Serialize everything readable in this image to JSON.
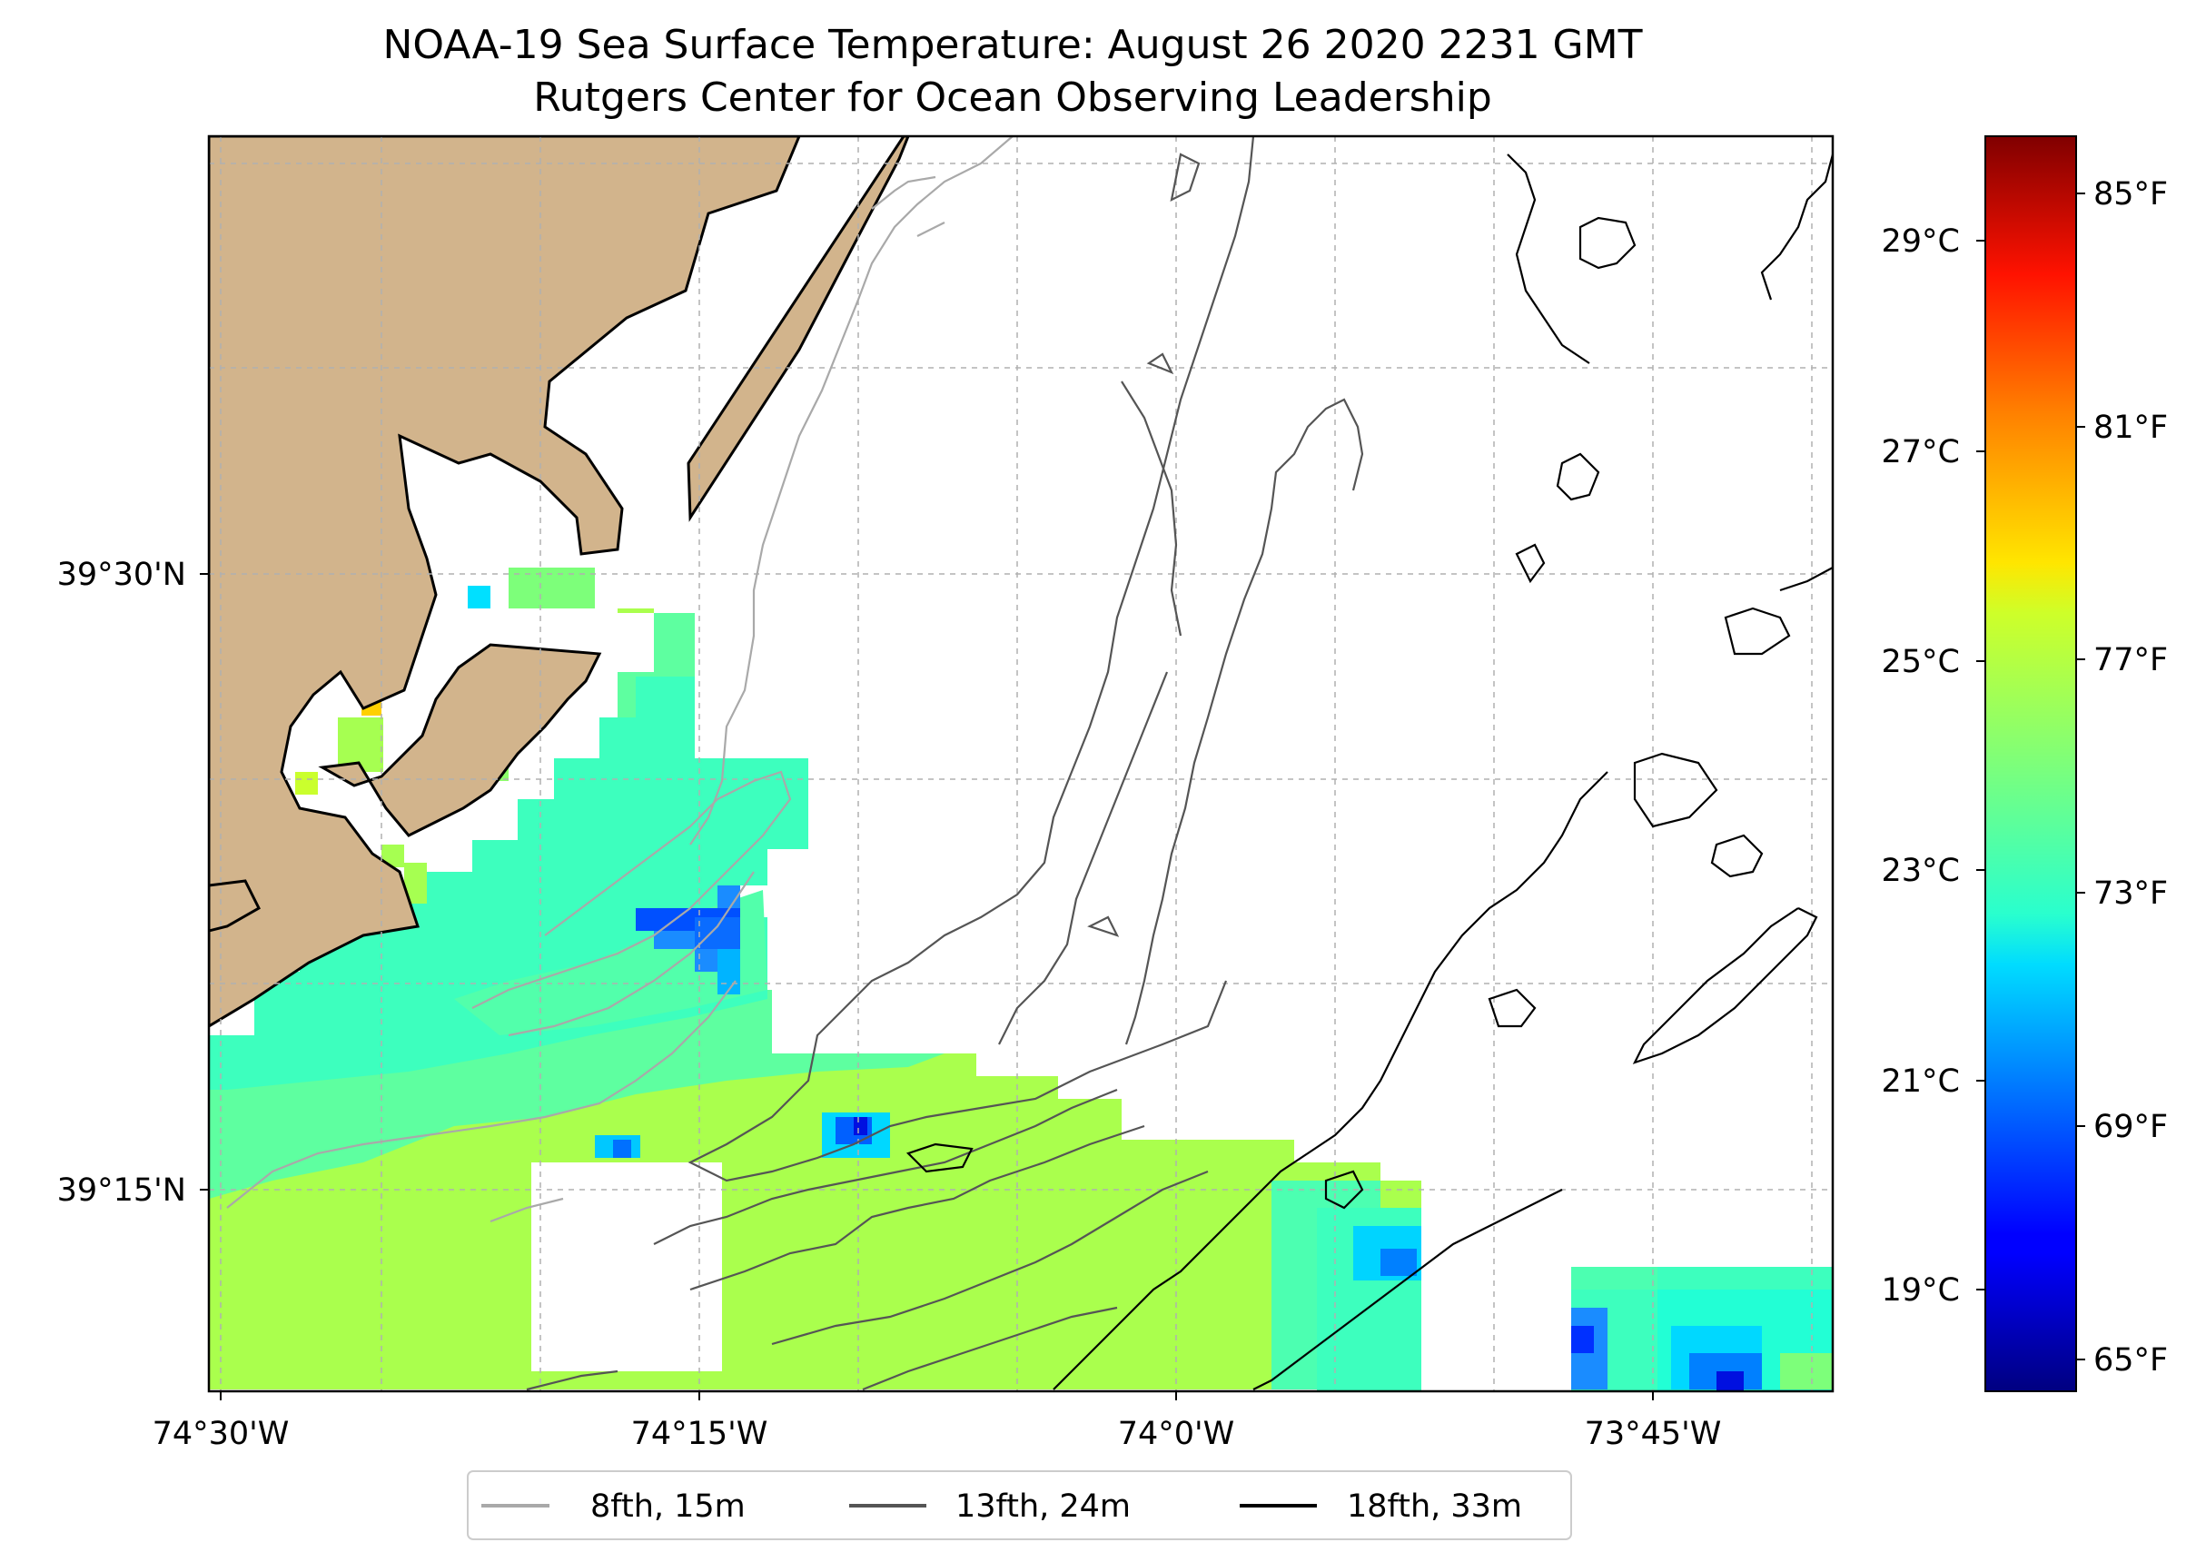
{
  "title": {
    "line1": "NOAA-19 Sea Surface Temperature: August 26 2020 2231 GMT",
    "line2": "Rutgers Center for Ocean Observing Leadership"
  },
  "map": {
    "lat_ticks": [
      "39°30'N",
      "39°15'N"
    ],
    "lon_ticks": [
      "74°30'W",
      "74°15'W",
      "74°0'W",
      "73°45'W"
    ],
    "grid": true,
    "land_color": "#d2b48c",
    "nodata_color": "#ffffff"
  },
  "colorbar": {
    "colormap": "jet",
    "celsius_ticks": [
      "29°C",
      "27°C",
      "25°C",
      "23°C",
      "21°C",
      "19°C"
    ],
    "fahrenheit_ticks": [
      "85°F",
      "81°F",
      "77°F",
      "73°F",
      "69°F",
      "65°F"
    ]
  },
  "legend": {
    "placement": "bottom-center",
    "items": [
      {
        "label": "8fth, 15m",
        "color": "#a9a9a9"
      },
      {
        "label": "13fth, 24m",
        "color": "#555555"
      },
      {
        "label": "18fth, 33m",
        "color": "#000000"
      }
    ]
  }
}
